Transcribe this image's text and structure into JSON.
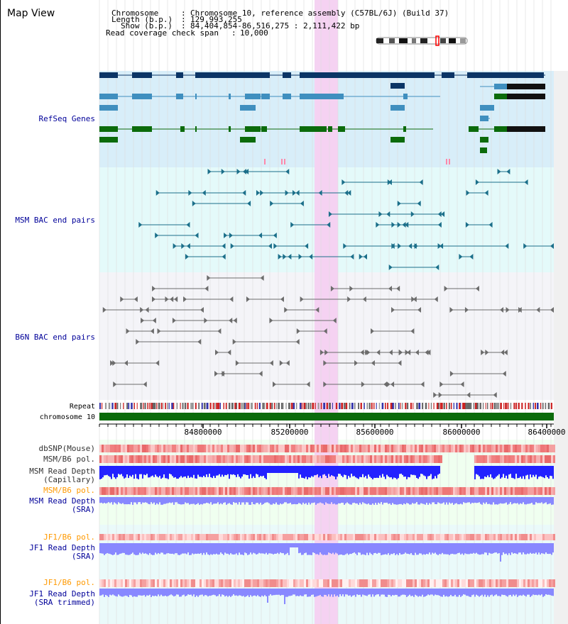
{
  "app": {
    "title": "Map View"
  },
  "info": {
    "chromosome_label": "Chromosome",
    "chromosome_value": "Chromosome 10, reference assembly (C57BL/6J) (Build 37)",
    "length_label": "Length (b.p.)",
    "length_value": "129,993,255",
    "show_label": "Show (b.p.)",
    "show_value": "84,404,854-86,516,275 : 2,111,422 bp",
    "span_label": "Read coverage check span",
    "span_value": "10,000"
  },
  "tracks": {
    "refseq": "RefSeq Genes",
    "msm_bac": "MSM BAC end pairs",
    "b6n_bac": "B6N BAC end pairs",
    "repeat": "Repeat",
    "chromosome": "chromosome 10",
    "dbsnp": "dbSNP(Mouse)",
    "msm_b6_pol_1": "MSM/B6 pol.",
    "msm_read_depth_cap_1": "MSM Read Depth",
    "msm_read_depth_cap_2": "(Capillary)",
    "msm_b6_pol_2": "MSM/B6 pol.",
    "msm_read_depth_sra_1": "MSM Read Depth",
    "msm_read_depth_sra_2": "(SRA)",
    "jf1_b6_pol_1": "JF1/B6 pol.",
    "jf1_read_depth_sra_1": "JF1 Read Depth",
    "jf1_read_depth_sra_2": "(SRA)",
    "jf1_b6_pol_2": "JF1/B6 pol.",
    "jf1_read_depth_trim_1": "JF1 Read Depth",
    "jf1_read_depth_trim_2": "(SRA trimmed)"
  },
  "axis": {
    "ticks": [
      "84800000",
      "85200000",
      "85600000",
      "86000000",
      "86400000"
    ]
  },
  "colors": {
    "refseq_bg": "#d8eef9",
    "msm_bg": "#e4fafa",
    "b6n_bg": "#f4f4f8",
    "highlight": "#f5d2f2",
    "gene_dark": "#0b3566",
    "gene_mid": "#3f8fbf",
    "gene_green": "#0b6b0b",
    "msm_bac": "#1b6f8a",
    "b6n_bac": "#6c6c6c",
    "label_blue": "#000099",
    "label_orange": "#ff9900",
    "depth_blue": "#2222ff",
    "depth_light": "#8888ff"
  },
  "icons": {
    "chromosome_ideogram": "chromosome-ideogram-icon"
  }
}
